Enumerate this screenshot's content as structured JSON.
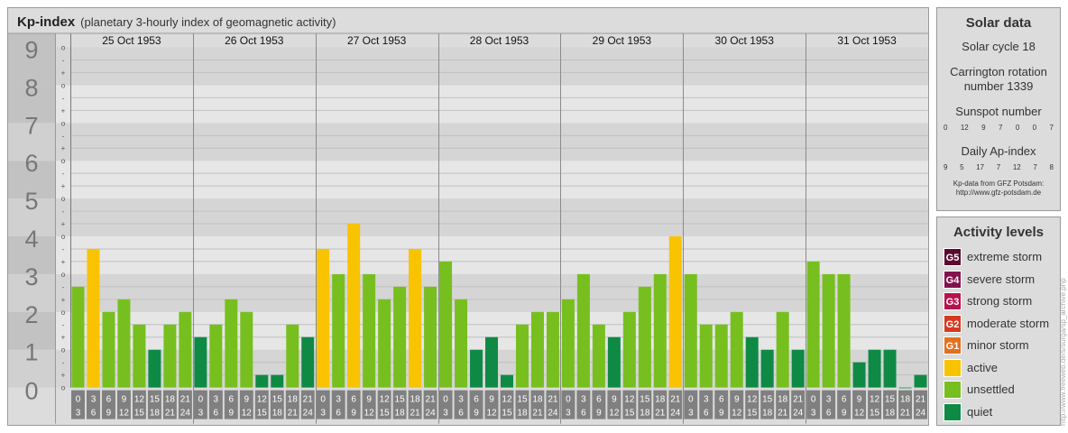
{
  "header": {
    "title": "Kp-index",
    "subtitle": "(planetary 3-hourly index of geomagnetic activity)"
  },
  "chart_data": {
    "type": "bar",
    "title": "Kp-index",
    "subtitle": "(planetary 3-hourly index of geomagnetic activity)",
    "ylim": [
      0,
      9
    ],
    "y_tick_labels": [
      "0",
      "1",
      "2",
      "3",
      "4",
      "5",
      "6",
      "7",
      "8",
      "9"
    ],
    "y_minor_labels": [
      "+",
      "-",
      "o"
    ],
    "days": [
      "25 Oct 1953",
      "26 Oct 1953",
      "27 Oct 1953",
      "28 Oct 1953",
      "29 Oct 1953",
      "30 Oct 1953",
      "31 Oct 1953"
    ],
    "interval_labels": [
      [
        "0",
        "3"
      ],
      [
        "3",
        "6"
      ],
      [
        "6",
        "9"
      ],
      [
        "9",
        "12"
      ],
      [
        "12",
        "15"
      ],
      [
        "15",
        "18"
      ],
      [
        "18",
        "21"
      ],
      [
        "21",
        "24"
      ]
    ],
    "values": [
      [
        2.667,
        3.667,
        2.0,
        2.333,
        1.667,
        1.0,
        1.667,
        2.0
      ],
      [
        1.333,
        1.667,
        2.333,
        2.0,
        0.333,
        0.333,
        1.667,
        1.333
      ],
      [
        3.667,
        3.0,
        4.333,
        3.0,
        2.333,
        2.667,
        3.667,
        2.667
      ],
      [
        3.333,
        2.333,
        1.0,
        1.333,
        0.333,
        1.667,
        2.0,
        2.0
      ],
      [
        2.333,
        3.0,
        1.667,
        1.333,
        2.0,
        2.667,
        3.0,
        4.0
      ],
      [
        3.0,
        1.667,
        1.667,
        2.0,
        1.333,
        1.0,
        2.0,
        1.0
      ],
      [
        3.333,
        3.0,
        3.0,
        0.667,
        1.0,
        1.0,
        0.0,
        0.333
      ]
    ],
    "colors": {
      "quiet": "#0e8a45",
      "unsettled": "#77bf1e",
      "active": "#f9c300",
      "g1": "#e4701e",
      "g2": "#d63a1e",
      "g3": "#b5134f",
      "g4": "#82114e",
      "g5": "#5a0a2f"
    },
    "thresholds": {
      "unsettled": 1.5,
      "active": 3.5,
      "storm": 4.5
    },
    "grid": true,
    "legend_position": "right"
  },
  "solar": {
    "title": "Solar data",
    "cycle": "Solar cycle 18",
    "carrington_line1": "Carrington rotation",
    "carrington_line2": "number 1339",
    "sunspot_label": "Sunspot number",
    "sunspot_values": [
      "0",
      "12",
      "9",
      "7",
      "0",
      "0",
      "7"
    ],
    "ap_label": "Daily Ap-index",
    "ap_values": [
      "9",
      "5",
      "17",
      "7",
      "12",
      "7",
      "8"
    ],
    "source_line1": "Kp-data from GFZ Potsdam:",
    "source_line2": "http://www.gfz-potsdam.de"
  },
  "activity": {
    "title": "Activity levels",
    "levels": [
      {
        "code": "G5",
        "label": "extreme storm",
        "color": "#5a0a2f"
      },
      {
        "code": "G4",
        "label": "severe storm",
        "color": "#82114e"
      },
      {
        "code": "G3",
        "label": "strong storm",
        "color": "#b5134f"
      },
      {
        "code": "G2",
        "label": "moderate storm",
        "color": "#d63a1e"
      },
      {
        "code": "G1",
        "label": "minor storm",
        "color": "#e4701e"
      },
      {
        "code": "",
        "label": "active",
        "color": "#f9c300"
      },
      {
        "code": "",
        "label": "unsettled",
        "color": "#77bf1e"
      },
      {
        "code": "",
        "label": "quiet",
        "color": "#0e8a45"
      }
    ]
  },
  "credit": "http://www.freeweb.de/s/surga/sp_archive.php"
}
